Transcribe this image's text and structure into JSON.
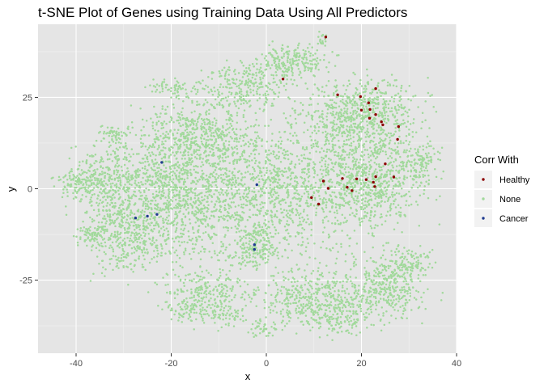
{
  "chart_data": {
    "type": "scatter",
    "title": "t-SNE Plot of Genes using Training Data Using All Predictors",
    "xlabel": "x",
    "ylabel": "y",
    "xlim": [
      -48,
      40
    ],
    "ylim": [
      -45,
      45
    ],
    "x_ticks": [
      -40,
      -20,
      0,
      20,
      40
    ],
    "x_tick_labels": [
      "-40",
      "-20",
      "0",
      "20",
      "40"
    ],
    "y_ticks": [
      -25,
      0,
      25
    ],
    "y_tick_labels": [
      "-25",
      "0",
      "25"
    ],
    "grid": true,
    "legend": {
      "title": "Corr With",
      "position": "right",
      "entries": [
        "Healthy",
        "None",
        "Cancer"
      ]
    },
    "colors": {
      "Healthy": "#8b0000",
      "None": "#a1d99b",
      "Cancer": "#1f3b8f",
      "panel": "#e5e5e5",
      "grid_major": "#ffffff"
    },
    "series": [
      {
        "name": "Healthy",
        "points": [
          [
            12.5,
            41.5
          ],
          [
            3.5,
            30
          ],
          [
            15,
            25.7
          ],
          [
            19.8,
            25.2
          ],
          [
            21.5,
            23.5
          ],
          [
            23,
            27.4
          ],
          [
            20,
            21.5
          ],
          [
            21.8,
            21.7
          ],
          [
            23,
            20.3
          ],
          [
            21.7,
            19.3
          ],
          [
            24.2,
            18.3
          ],
          [
            24.5,
            17.5
          ],
          [
            27.8,
            17
          ],
          [
            27.6,
            13.5
          ],
          [
            25,
            6.8
          ],
          [
            12,
            2.1
          ],
          [
            13,
            0.1
          ],
          [
            16,
            2.8
          ],
          [
            17,
            0.4
          ],
          [
            18,
            -0.5
          ],
          [
            19,
            2.7
          ],
          [
            21,
            2.5
          ],
          [
            22.5,
            1.8
          ],
          [
            23,
            3.3
          ],
          [
            26.8,
            3.2
          ],
          [
            22.8,
            0.6
          ],
          [
            9.5,
            -2.4
          ],
          [
            11,
            -4.2
          ]
        ]
      },
      {
        "name": "Cancer",
        "points": [
          [
            -22,
            7.2
          ],
          [
            -2,
            1.1
          ],
          [
            -27.5,
            -8
          ],
          [
            -25,
            -7.5
          ],
          [
            -23,
            -7
          ],
          [
            -2.5,
            -15.3
          ],
          [
            -2.5,
            -16.6
          ]
        ]
      }
    ],
    "none_series_note_free": true
  }
}
